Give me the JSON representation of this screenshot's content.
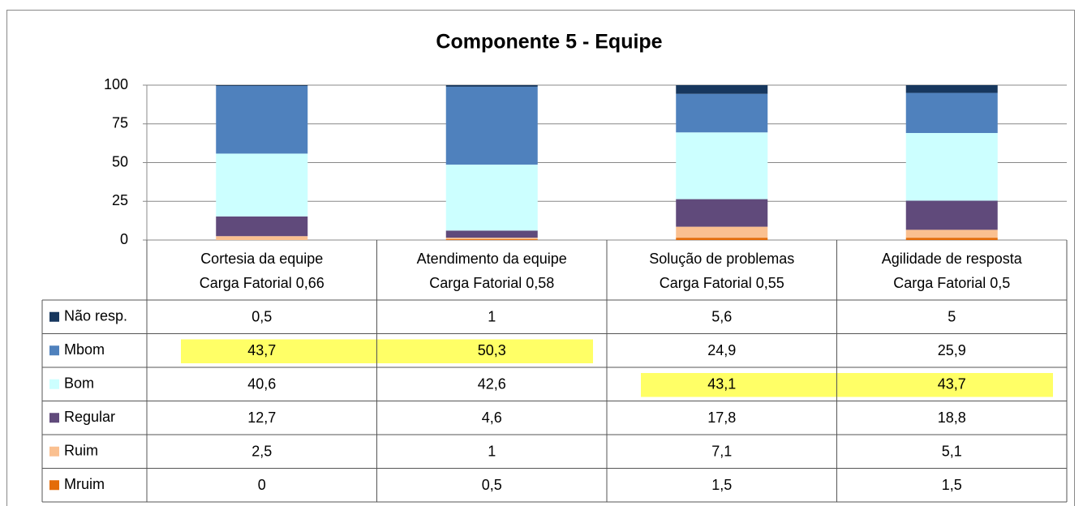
{
  "chart_data": {
    "type": "stacked_bar",
    "title": "Componente 5 - Equipe",
    "categories": [
      [
        "Cortesia da equipe",
        "Carga Fatorial 0,66"
      ],
      [
        "Atendimento da equipe",
        "Carga Fatorial 0,58"
      ],
      [
        "Solução de problemas",
        "Carga Fatorial 0,55"
      ],
      [
        "Agilidade de resposta",
        "Carga Fatorial 0,5"
      ]
    ],
    "series": [
      {
        "name": "Não resp.",
        "color": "#17375e",
        "values": [
          0.5,
          1,
          5.6,
          5
        ],
        "value_labels": [
          "0,5",
          "1",
          "5,6",
          "5"
        ],
        "highlighted": [
          false,
          false,
          false,
          false
        ]
      },
      {
        "name": "Mbom",
        "color": "#4f81bd",
        "values": [
          43.7,
          50.3,
          24.9,
          25.9
        ],
        "value_labels": [
          "43,7",
          "50,3",
          "24,9",
          "25,9"
        ],
        "highlighted": [
          true,
          true,
          false,
          false
        ]
      },
      {
        "name": "Bom",
        "color": "#ccffff",
        "values": [
          40.6,
          42.6,
          43.1,
          43.7
        ],
        "value_labels": [
          "40,6",
          "42,6",
          "43,1",
          "43,7"
        ],
        "highlighted": [
          false,
          false,
          true,
          true
        ]
      },
      {
        "name": "Regular",
        "color": "#604a7b",
        "values": [
          12.7,
          4.6,
          17.8,
          18.8
        ],
        "value_labels": [
          "12,7",
          "4,6",
          "17,8",
          "18,8"
        ],
        "highlighted": [
          false,
          false,
          false,
          false
        ]
      },
      {
        "name": "Ruim",
        "color": "#fac090",
        "values": [
          2.5,
          1,
          7.1,
          5.1
        ],
        "value_labels": [
          "2,5",
          "1",
          "7,1",
          "5,1"
        ],
        "highlighted": [
          false,
          false,
          false,
          false
        ]
      },
      {
        "name": "Mruim",
        "color": "#e46c0a",
        "values": [
          0,
          0.5,
          1.5,
          1.5
        ],
        "value_labels": [
          "0",
          "0,5",
          "1,5",
          "1,5"
        ],
        "highlighted": [
          false,
          false,
          false,
          false
        ]
      }
    ],
    "ylim": [
      0,
      100
    ],
    "yticks": [
      0,
      25,
      50,
      75,
      100
    ],
    "grid": true,
    "highlight_color": "#ffff66"
  }
}
